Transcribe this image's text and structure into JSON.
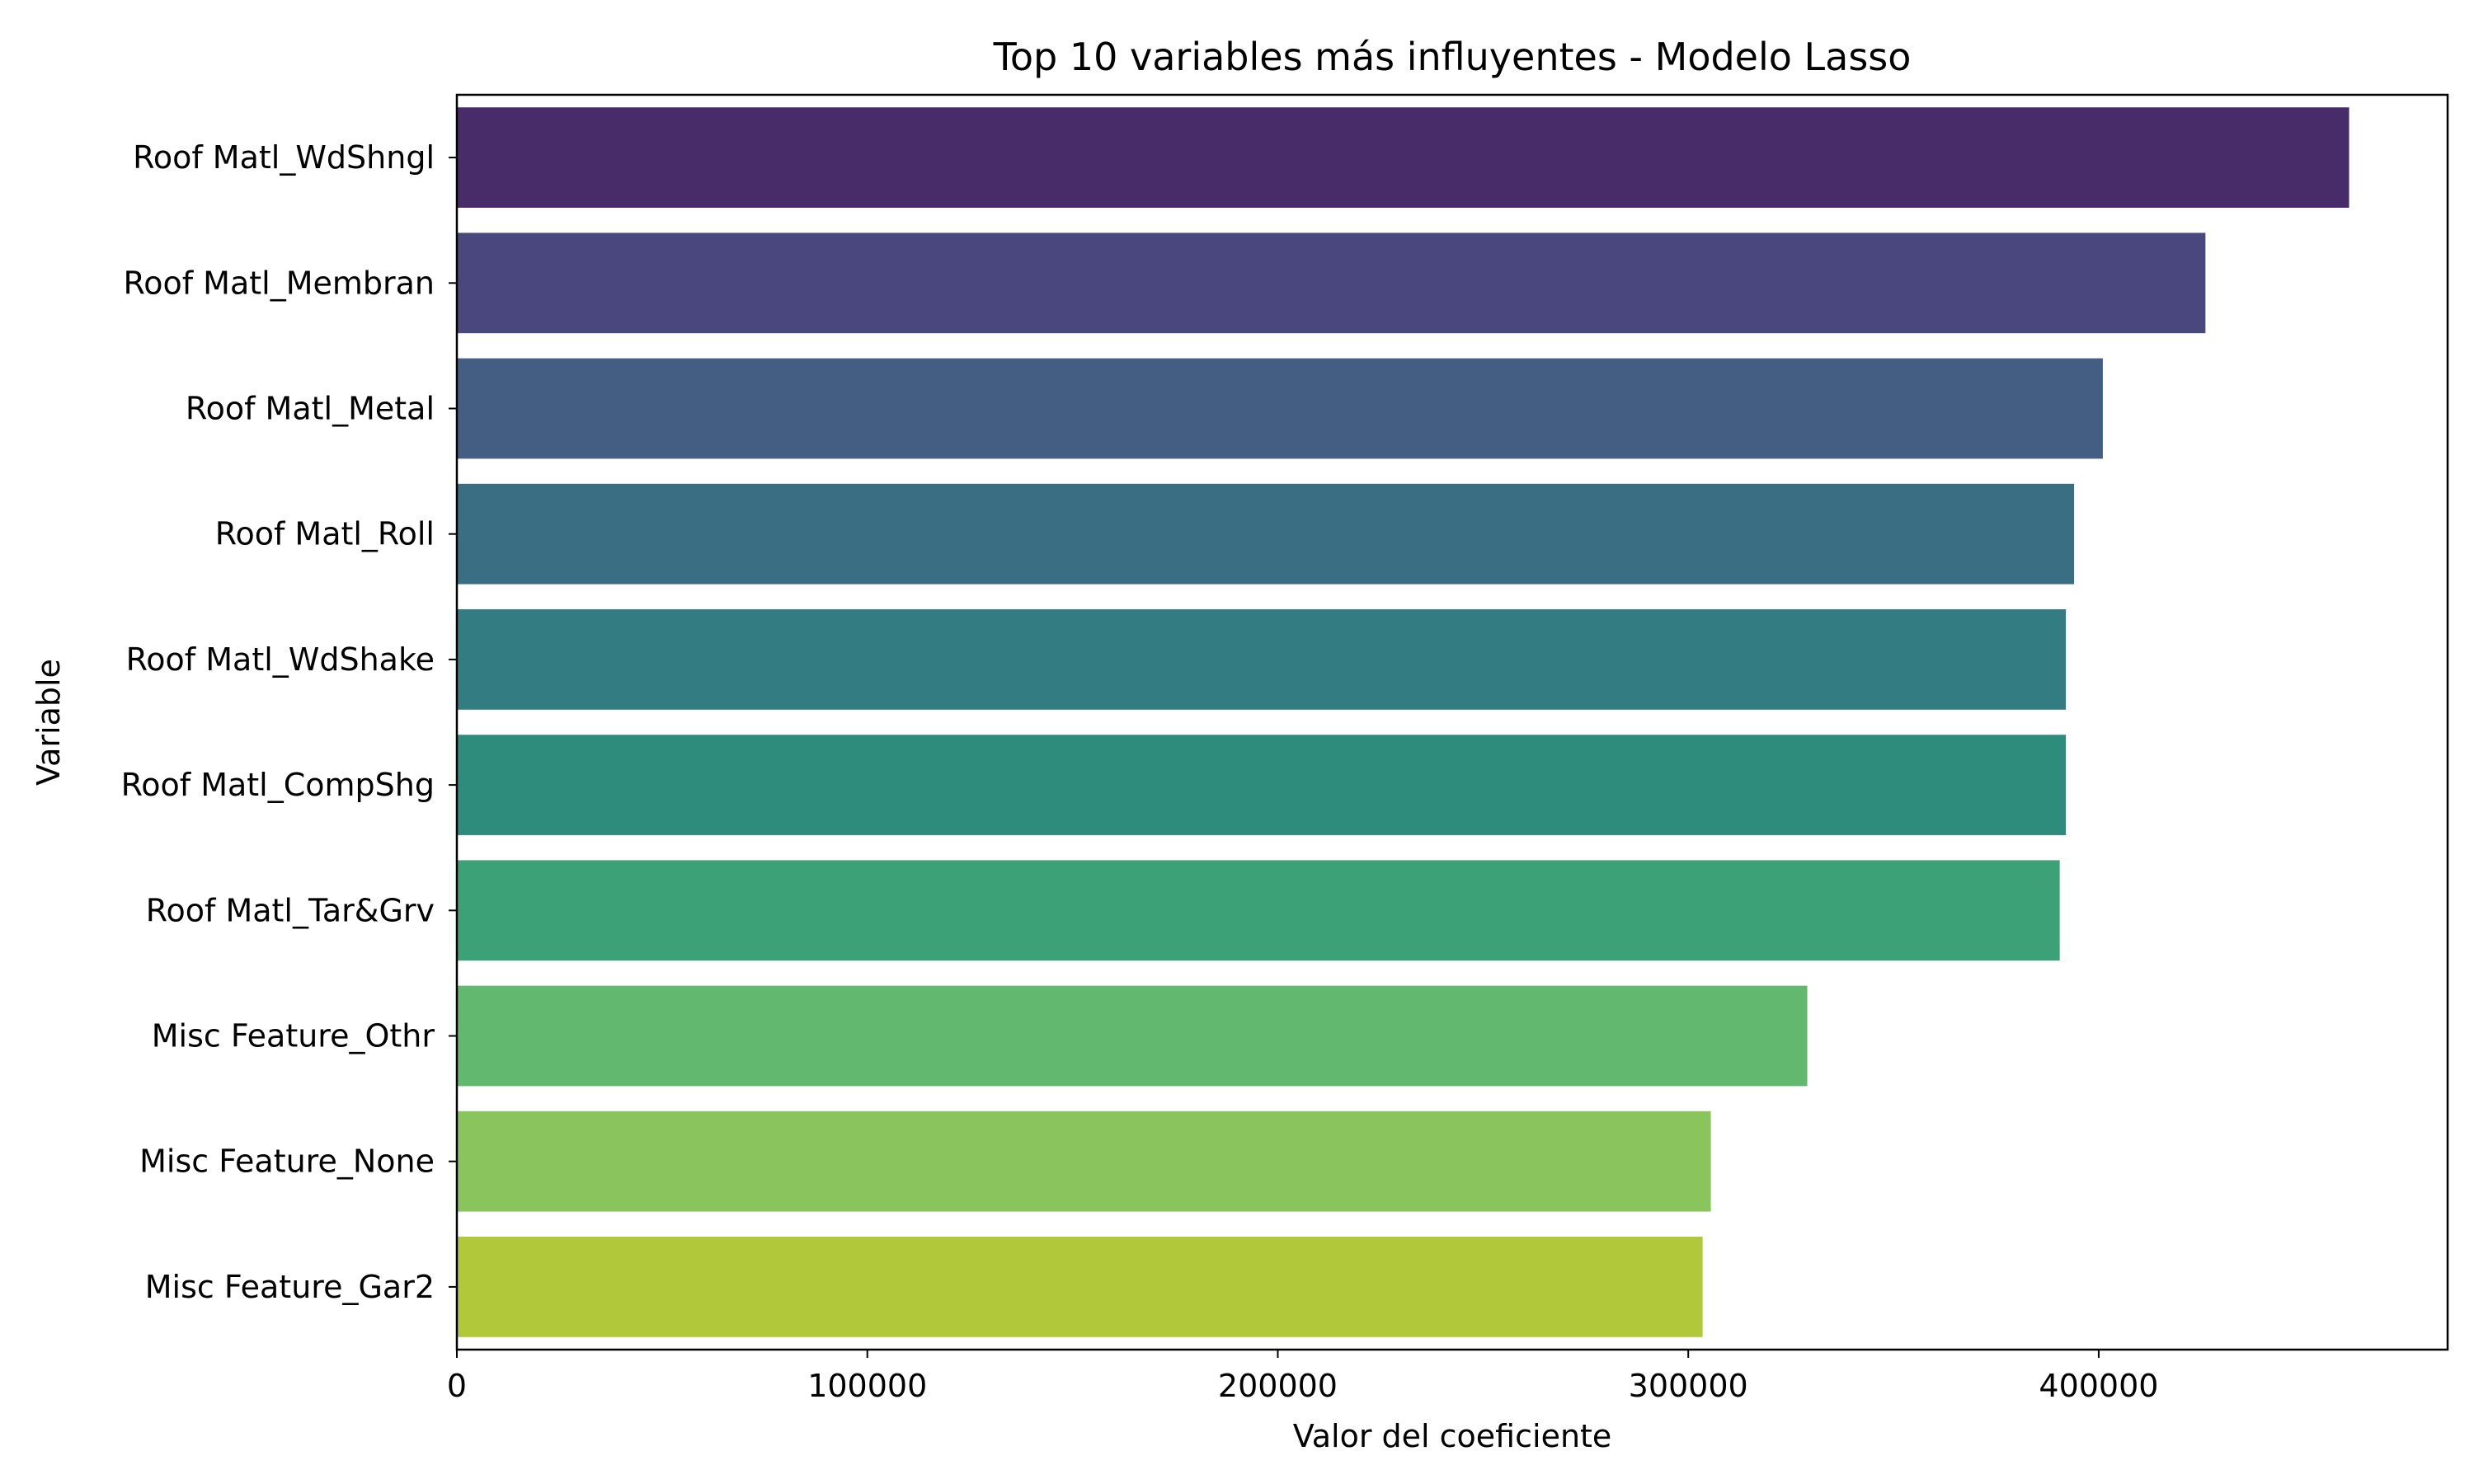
{
  "chart_data": {
    "type": "bar",
    "orientation": "horizontal",
    "title": "Top 10 variables más influyentes - Modelo Lasso",
    "xlabel": "Valor del coeficiente",
    "ylabel": "Variable",
    "categories": [
      "Roof Matl_WdShngl",
      "Roof Matl_Membran",
      "Roof Matl_Metal",
      "Roof Matl_Roll",
      "Roof Matl_WdShake",
      "Roof Matl_CompShg",
      "Roof Matl_Tar&Grv",
      "Misc Feature_Othr",
      "Misc Feature_None",
      "Misc Feature_Gar2"
    ],
    "values": [
      461000,
      426000,
      401000,
      394000,
      392000,
      392000,
      390500,
      329000,
      305500,
      303500
    ],
    "colors": [
      "#482c6a",
      "#4a477e",
      "#435d83",
      "#3a6e82",
      "#327c82",
      "#2e8c7d",
      "#3ca177",
      "#63b870",
      "#8ac45d",
      "#b2c83b"
    ],
    "xlim": [
      0,
      485000
    ],
    "xticks": [
      0,
      100000,
      200000,
      300000,
      400000
    ],
    "xtick_labels": [
      "0",
      "100000",
      "200000",
      "300000",
      "400000"
    ],
    "grid": false,
    "legend": "none"
  }
}
